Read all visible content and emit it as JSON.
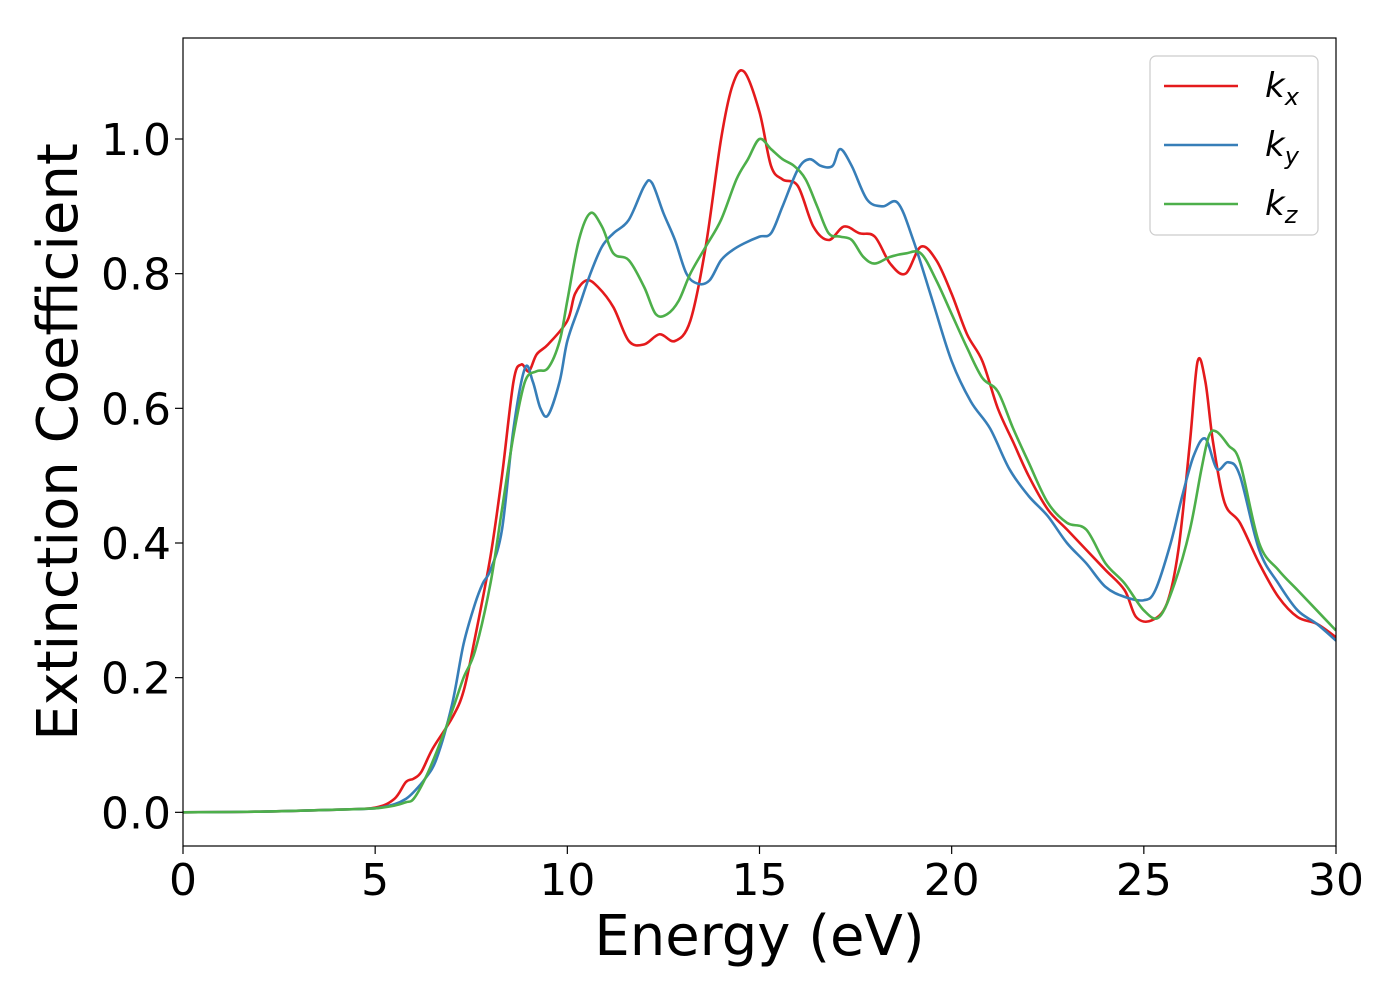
{
  "chart_data": {
    "type": "line",
    "title": "",
    "xlabel": "Energy (eV)",
    "ylabel": "Extinction Coefficient",
    "xlim": [
      0,
      30
    ],
    "ylim": [
      -0.05,
      1.15
    ],
    "xticks": [
      0,
      5,
      10,
      15,
      20,
      25,
      30
    ],
    "xtick_labels": [
      "0",
      "5",
      "10",
      "15",
      "20",
      "25",
      "30"
    ],
    "yticks": [
      0.0,
      0.2,
      0.4,
      0.6,
      0.8,
      1.0
    ],
    "ytick_labels": [
      "0.0",
      "0.2",
      "0.4",
      "0.6",
      "0.8",
      "1.0"
    ],
    "grid": false,
    "legend_position": "top-right",
    "series": [
      {
        "name": "k",
        "subscript": "x",
        "color": "#e41a1c",
        "x": [
          0,
          2,
          4,
          5,
          5.5,
          5.8,
          6,
          6.2,
          6.5,
          7,
          7.3,
          7.6,
          8,
          8.3,
          8.6,
          8.8,
          9,
          9.2,
          9.5,
          10,
          10.2,
          10.5,
          10.8,
          11.2,
          11.6,
          12,
          12.4,
          12.8,
          13.2,
          13.6,
          14,
          14.3,
          14.6,
          15,
          15.3,
          15.6,
          16,
          16.4,
          16.8,
          17.2,
          17.6,
          18,
          18.4,
          18.8,
          19.2,
          19.6,
          20,
          20.4,
          20.8,
          21.2,
          21.6,
          22,
          22.5,
          23,
          23.5,
          24,
          24.5,
          24.8,
          25.2,
          25.6,
          25.9,
          26.2,
          26.4,
          26.6,
          26.8,
          27.1,
          27.5,
          28,
          28.5,
          29,
          29.5,
          30
        ],
        "y": [
          0.0,
          0.001,
          0.004,
          0.007,
          0.02,
          0.045,
          0.05,
          0.06,
          0.095,
          0.14,
          0.18,
          0.26,
          0.38,
          0.5,
          0.64,
          0.665,
          0.655,
          0.68,
          0.695,
          0.73,
          0.77,
          0.79,
          0.78,
          0.75,
          0.7,
          0.695,
          0.71,
          0.7,
          0.73,
          0.84,
          1.0,
          1.08,
          1.1,
          1.04,
          0.96,
          0.94,
          0.93,
          0.87,
          0.85,
          0.87,
          0.86,
          0.855,
          0.815,
          0.8,
          0.84,
          0.82,
          0.77,
          0.71,
          0.67,
          0.6,
          0.55,
          0.5,
          0.45,
          0.42,
          0.39,
          0.36,
          0.33,
          0.29,
          0.285,
          0.31,
          0.39,
          0.55,
          0.67,
          0.64,
          0.55,
          0.46,
          0.43,
          0.37,
          0.32,
          0.29,
          0.28,
          0.26
        ]
      },
      {
        "name": "k",
        "subscript": "y",
        "color": "#377eb8",
        "x": [
          0,
          2,
          4,
          5,
          5.5,
          5.8,
          6,
          6.3,
          6.6,
          7,
          7.3,
          7.6,
          7.8,
          8,
          8.3,
          8.6,
          8.9,
          9.1,
          9.3,
          9.5,
          9.8,
          10,
          10.3,
          10.6,
          10.9,
          11.2,
          11.6,
          12,
          12.2,
          12.5,
          12.8,
          13.1,
          13.4,
          13.7,
          14,
          14.3,
          14.6,
          15,
          15.3,
          15.6,
          16,
          16.3,
          16.6,
          16.9,
          17.1,
          17.4,
          17.8,
          18.2,
          18.6,
          19,
          19.5,
          20,
          20.5,
          21,
          21.5,
          22,
          22.5,
          23,
          23.5,
          24,
          24.5,
          25,
          25.3,
          25.7,
          26,
          26.3,
          26.6,
          26.9,
          27.2,
          27.5,
          28,
          28.5,
          29,
          29.5,
          30
        ],
        "y": [
          0.0,
          0.001,
          0.004,
          0.006,
          0.012,
          0.02,
          0.03,
          0.05,
          0.08,
          0.16,
          0.25,
          0.31,
          0.34,
          0.36,
          0.42,
          0.57,
          0.66,
          0.64,
          0.6,
          0.59,
          0.64,
          0.7,
          0.75,
          0.8,
          0.84,
          0.86,
          0.88,
          0.93,
          0.935,
          0.89,
          0.85,
          0.8,
          0.785,
          0.79,
          0.82,
          0.835,
          0.845,
          0.855,
          0.86,
          0.9,
          0.955,
          0.97,
          0.96,
          0.96,
          0.985,
          0.96,
          0.91,
          0.9,
          0.905,
          0.85,
          0.76,
          0.67,
          0.61,
          0.57,
          0.51,
          0.47,
          0.44,
          0.4,
          0.37,
          0.335,
          0.32,
          0.315,
          0.33,
          0.4,
          0.47,
          0.53,
          0.555,
          0.51,
          0.52,
          0.5,
          0.39,
          0.34,
          0.3,
          0.28,
          0.255
        ]
      },
      {
        "name": "k",
        "subscript": "z",
        "color": "#4daf4a",
        "x": [
          0,
          2,
          4,
          5,
          5.5,
          5.8,
          6,
          6.3,
          6.6,
          7,
          7.3,
          7.6,
          8,
          8.3,
          8.6,
          8.9,
          9.2,
          9.5,
          9.8,
          10,
          10.3,
          10.6,
          10.9,
          11.2,
          11.6,
          12,
          12.3,
          12.6,
          12.9,
          13.2,
          13.6,
          14,
          14.4,
          14.7,
          15,
          15.3,
          15.6,
          15.9,
          16.2,
          16.5,
          16.8,
          17.1,
          17.4,
          17.7,
          18,
          18.4,
          18.8,
          19.2,
          19.6,
          20,
          20.4,
          20.8,
          21.2,
          21.6,
          22,
          22.5,
          23,
          23.5,
          24,
          24.5,
          25,
          25.4,
          25.8,
          26.2,
          26.5,
          26.7,
          26.9,
          27.2,
          27.5,
          28,
          28.5,
          29,
          29.5,
          30
        ],
        "y": [
          0.0,
          0.001,
          0.004,
          0.006,
          0.01,
          0.015,
          0.02,
          0.05,
          0.09,
          0.15,
          0.2,
          0.24,
          0.34,
          0.45,
          0.56,
          0.64,
          0.655,
          0.66,
          0.7,
          0.76,
          0.85,
          0.89,
          0.87,
          0.83,
          0.82,
          0.78,
          0.74,
          0.74,
          0.76,
          0.8,
          0.84,
          0.88,
          0.94,
          0.97,
          1.0,
          0.985,
          0.97,
          0.96,
          0.94,
          0.9,
          0.86,
          0.855,
          0.85,
          0.825,
          0.815,
          0.825,
          0.83,
          0.83,
          0.79,
          0.74,
          0.69,
          0.645,
          0.625,
          0.57,
          0.52,
          0.46,
          0.43,
          0.42,
          0.37,
          0.34,
          0.3,
          0.29,
          0.34,
          0.42,
          0.51,
          0.56,
          0.565,
          0.545,
          0.52,
          0.4,
          0.36,
          0.33,
          0.3,
          0.27
        ]
      }
    ]
  }
}
